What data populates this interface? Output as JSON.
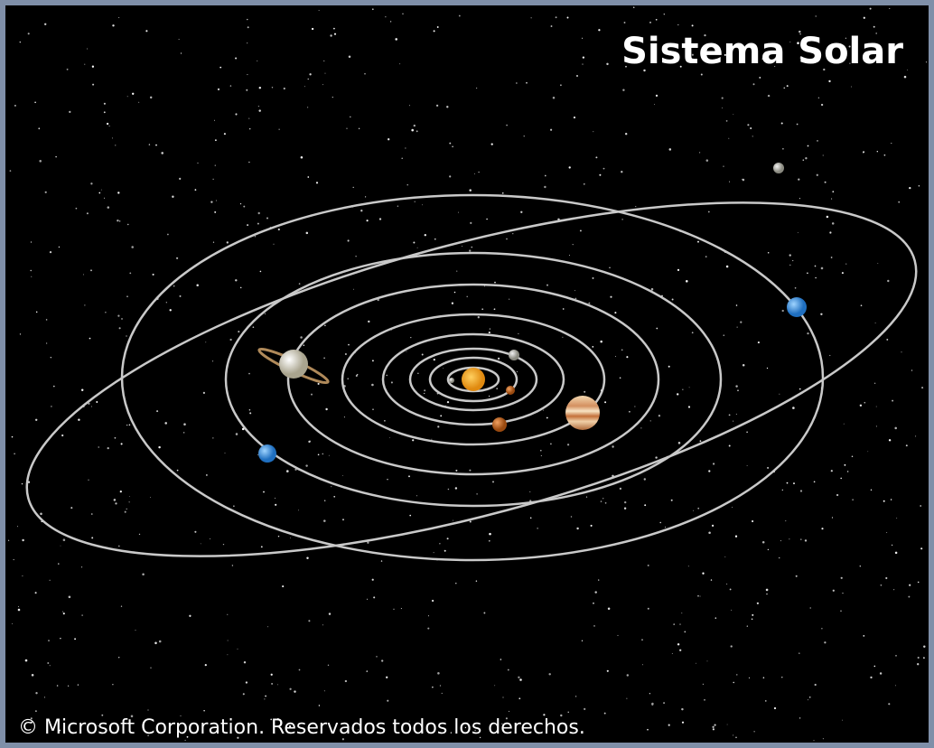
{
  "title": "Sistema Solar",
  "copyright": "© Microsoft Corporation. Reservados todos los derechos."
}
